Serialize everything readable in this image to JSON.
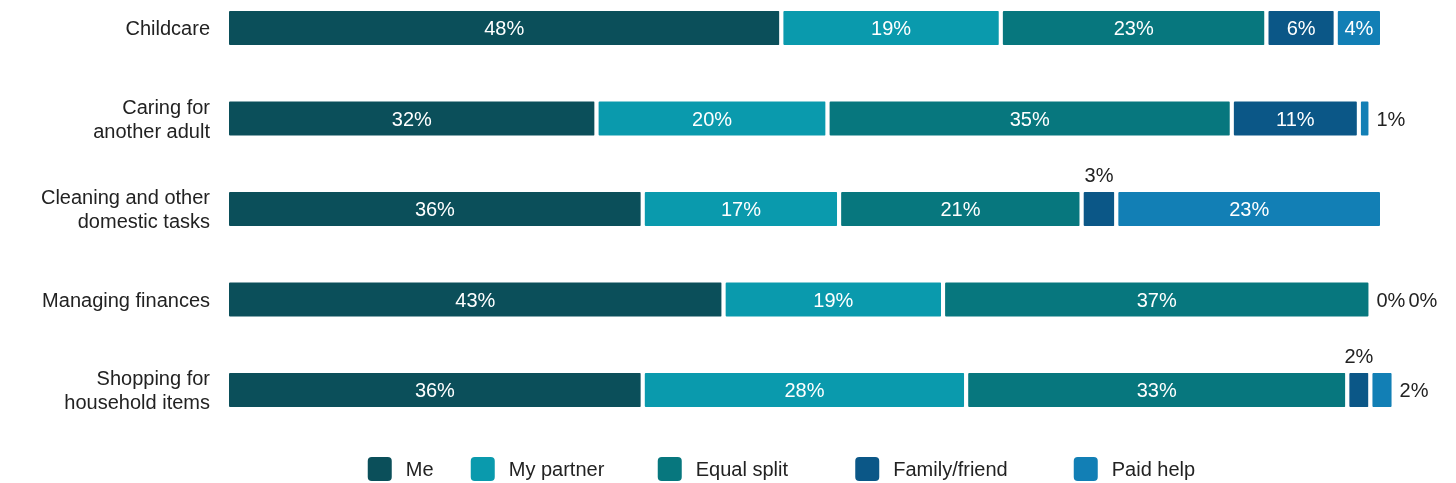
{
  "chart_data": {
    "type": "bar",
    "orientation": "horizontal",
    "stacked": true,
    "legend": "bottom",
    "categories": [
      "Childcare",
      "Caring for another adult",
      "Cleaning and other domestic tasks",
      "Managing finances",
      "Shopping for household items"
    ],
    "series": [
      {
        "name": "Me",
        "color": "#0b4f5a",
        "values": [
          48,
          32,
          36,
          43,
          36
        ],
        "value_labels": [
          "48%",
          "32%",
          "36%",
          "43%",
          "36%"
        ]
      },
      {
        "name": "My partner",
        "color": "#0a9aad",
        "values": [
          19,
          20,
          17,
          19,
          28
        ],
        "value_labels": [
          "19%",
          "20%",
          "17%",
          "19%",
          "28%"
        ]
      },
      {
        "name": "Equal split",
        "color": "#07777e",
        "values": [
          23,
          35,
          21,
          37,
          33
        ],
        "value_labels": [
          "23%",
          "35%",
          "21%",
          "37%",
          "33%"
        ]
      },
      {
        "name": "Family/friend",
        "color": "#0b5787",
        "values": [
          6,
          11,
          3,
          0,
          2
        ],
        "value_labels": [
          "6%",
          "11%",
          "3%",
          "0%",
          "2%"
        ]
      },
      {
        "name": "Paid help",
        "color": "#127fb5",
        "values": [
          4,
          1,
          23,
          0,
          2
        ],
        "value_labels": [
          "4%",
          "1%",
          "23%",
          "0%",
          "2%"
        ]
      }
    ]
  }
}
